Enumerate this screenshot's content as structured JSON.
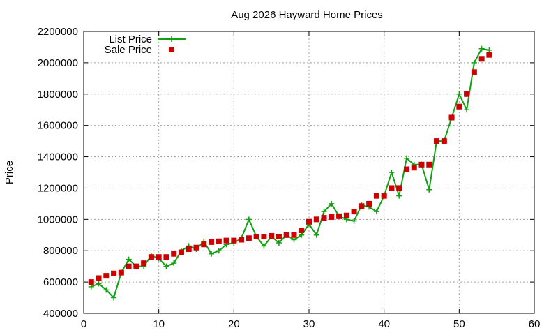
{
  "chart_data": {
    "type": "line",
    "title": "Aug 2026 Hayward Home Prices",
    "xlabel": "",
    "ylabel": "Price",
    "xlim": [
      0,
      60
    ],
    "ylim": [
      400000,
      2200000
    ],
    "xticks": [
      0,
      10,
      20,
      30,
      40,
      50,
      60
    ],
    "yticks": [
      400000,
      600000,
      800000,
      1000000,
      1200000,
      1400000,
      1600000,
      1800000,
      2000000,
      2200000
    ],
    "grid": true,
    "legend_position": "top-left",
    "x": [
      1,
      2,
      3,
      4,
      5,
      6,
      7,
      8,
      9,
      10,
      11,
      12,
      13,
      14,
      15,
      16,
      17,
      18,
      19,
      20,
      21,
      22,
      23,
      24,
      25,
      26,
      27,
      28,
      29,
      30,
      31,
      32,
      33,
      34,
      35,
      36,
      37,
      38,
      39,
      40,
      41,
      42,
      43,
      44,
      45,
      46,
      47,
      48,
      49,
      50,
      51,
      52,
      53,
      54
    ],
    "series": [
      {
        "name": "List Price",
        "style": "linespoints",
        "marker": "plus",
        "color": "#10a010",
        "values": [
          570000,
          590000,
          550000,
          500000,
          660000,
          745000,
          700000,
          700000,
          770000,
          750000,
          700000,
          720000,
          800000,
          830000,
          810000,
          860000,
          780000,
          800000,
          840000,
          850000,
          880000,
          1000000,
          890000,
          830000,
          890000,
          850000,
          900000,
          870000,
          900000,
          970000,
          900000,
          1050000,
          1100000,
          1020000,
          1000000,
          990000,
          1090000,
          1080000,
          1050000,
          1150000,
          1300000,
          1150000,
          1390000,
          1350000,
          1350000,
          1190000,
          1500000,
          1500000,
          1650000,
          1800000,
          1700000,
          2000000,
          2090000,
          2080000
        ]
      },
      {
        "name": "Sale Price",
        "style": "points",
        "marker": "square",
        "color": "#cc0000",
        "values": [
          600000,
          625000,
          640000,
          655000,
          660000,
          700000,
          700000,
          720000,
          760000,
          760000,
          760000,
          780000,
          790000,
          810000,
          820000,
          840000,
          855000,
          860000,
          865000,
          865000,
          870000,
          880000,
          890000,
          890000,
          895000,
          890000,
          900000,
          900000,
          930000,
          985000,
          1000000,
          1010000,
          1015000,
          1020000,
          1025000,
          1050000,
          1085000,
          1100000,
          1150000,
          1150000,
          1200000,
          1200000,
          1320000,
          1330000,
          1350000,
          1350000,
          1500000,
          1500000,
          1650000,
          1720000,
          1800000,
          1940000,
          2025000,
          2050000
        ]
      }
    ]
  }
}
